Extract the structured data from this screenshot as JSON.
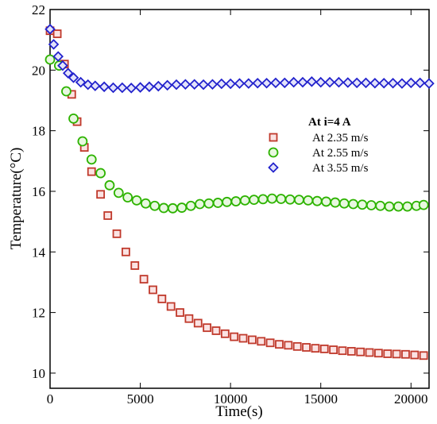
{
  "chart_data": {
    "type": "scatter",
    "xlabel": "Time(s)",
    "ylabel": "Temperature(°C)",
    "xlim": [
      0,
      21000
    ],
    "ylim": [
      9.5,
      22
    ],
    "xticks": [
      0,
      5000,
      10000,
      15000,
      20000
    ],
    "yticks": [
      10,
      12,
      14,
      16,
      18,
      20,
      22
    ],
    "grid": false,
    "legend": {
      "title": "At i=4 A",
      "position": "top-right"
    },
    "series": [
      {
        "name": "At 2.35 m/s",
        "marker": "square",
        "color": "#c0392b",
        "fill": "#fbe3e3",
        "x": [
          0,
          400,
          800,
          1200,
          1500,
          1900,
          2300,
          2800,
          3200,
          3700,
          4200,
          4700,
          5200,
          5700,
          6200,
          6700,
          7200,
          7700,
          8200,
          8700,
          9200,
          9700,
          10200,
          10700,
          11200,
          11700,
          12200,
          12700,
          13200,
          13700,
          14200,
          14700,
          15200,
          15700,
          16200,
          16700,
          17200,
          17700,
          18200,
          18700,
          19200,
          19700,
          20200,
          20700
        ],
        "y": [
          21.3,
          21.2,
          20.2,
          19.2,
          18.3,
          17.45,
          16.65,
          15.9,
          15.2,
          14.6,
          14.0,
          13.55,
          13.1,
          12.75,
          12.45,
          12.2,
          12.0,
          11.8,
          11.65,
          11.5,
          11.4,
          11.3,
          11.2,
          11.15,
          11.1,
          11.05,
          11.0,
          10.95,
          10.92,
          10.88,
          10.85,
          10.82,
          10.8,
          10.77,
          10.74,
          10.72,
          10.7,
          10.68,
          10.66,
          10.64,
          10.63,
          10.62,
          10.6,
          10.58
        ]
      },
      {
        "name": "At 2.55 m/s",
        "marker": "circle",
        "color": "#2db300",
        "fill": "#e8f8e0",
        "x": [
          0,
          500,
          900,
          1300,
          1800,
          2300,
          2800,
          3300,
          3800,
          4300,
          4800,
          5300,
          5800,
          6300,
          6800,
          7300,
          7800,
          8300,
          8800,
          9300,
          9800,
          10300,
          10800,
          11300,
          11800,
          12300,
          12800,
          13300,
          13800,
          14300,
          14800,
          15300,
          15800,
          16300,
          16800,
          17300,
          17800,
          18300,
          18800,
          19300,
          19800,
          20300,
          20700
        ],
        "y": [
          20.35,
          20.15,
          19.3,
          18.4,
          17.65,
          17.05,
          16.6,
          16.2,
          15.95,
          15.8,
          15.7,
          15.6,
          15.52,
          15.45,
          15.44,
          15.46,
          15.52,
          15.58,
          15.6,
          15.62,
          15.65,
          15.67,
          15.7,
          15.72,
          15.74,
          15.76,
          15.75,
          15.73,
          15.72,
          15.7,
          15.68,
          15.66,
          15.63,
          15.6,
          15.58,
          15.56,
          15.54,
          15.52,
          15.5,
          15.5,
          15.5,
          15.52,
          15.55
        ]
      },
      {
        "name": "At 3.55 m/s",
        "marker": "diamond",
        "color": "#2222cc",
        "fill": "#e3e3fa",
        "x": [
          0,
          200,
          450,
          700,
          1000,
          1300,
          1700,
          2100,
          2500,
          3000,
          3500,
          4000,
          4500,
          5000,
          5500,
          6000,
          6500,
          7000,
          7500,
          8000,
          8500,
          9000,
          9500,
          10000,
          10500,
          11000,
          11500,
          12000,
          12500,
          13000,
          13500,
          14000,
          14500,
          15000,
          15500,
          16000,
          16500,
          17000,
          17500,
          18000,
          18500,
          19000,
          19500,
          20000,
          20500,
          21000
        ],
        "y": [
          21.35,
          20.85,
          20.45,
          20.15,
          19.9,
          19.75,
          19.6,
          19.52,
          19.48,
          19.45,
          19.42,
          19.42,
          19.41,
          19.43,
          19.45,
          19.47,
          19.5,
          19.52,
          19.53,
          19.53,
          19.52,
          19.53,
          19.55,
          19.55,
          19.56,
          19.56,
          19.57,
          19.57,
          19.58,
          19.58,
          19.6,
          19.6,
          19.62,
          19.6,
          19.6,
          19.6,
          19.59,
          19.58,
          19.58,
          19.57,
          19.57,
          19.57,
          19.56,
          19.58,
          19.58,
          19.56
        ]
      }
    ]
  }
}
